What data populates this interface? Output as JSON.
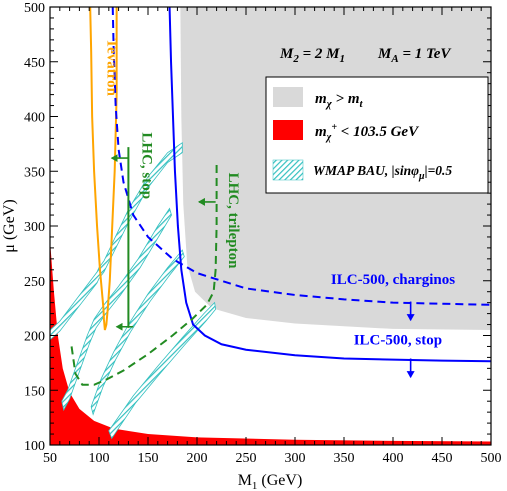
{
  "chart_data": {
    "type": "line",
    "xlabel": "M",
    "xlabel_sub": "1",
    "xlabel_unit": "(GeV)",
    "ylabel": "μ (GeV)",
    "xlim": [
      50,
      500
    ],
    "ylim": [
      100,
      500
    ],
    "x_ticks": [
      "50",
      "100",
      "150",
      "200",
      "250",
      "300",
      "350",
      "400",
      "450",
      "500"
    ],
    "y_ticks": [
      "100",
      "150",
      "200",
      "250",
      "300",
      "350",
      "400",
      "450",
      "500"
    ],
    "grid": false,
    "header": {
      "m2_text": "M",
      "m2_sub": "2",
      "m2_rest": " = 2 M",
      "m2_sub2": "1",
      "ma_text": "M",
      "ma_sub": "A",
      "ma_rest": " = 1 TeV"
    },
    "legend": {
      "position": "top-right",
      "entries": [
        {
          "text": "m",
          "sub": "χ",
          "rest": " > m",
          "sub2": "t",
          "color": "#d9d9d9",
          "style": "fill"
        },
        {
          "text": "m",
          "sub": "χ",
          "sup": "+",
          "rest": " < 103.5 GeV",
          "color": "#ff0000",
          "style": "fill"
        },
        {
          "text": "WMAP BAU, |sinφ",
          "sub": "μ",
          "rest": "|=0.5",
          "color": "#33c0c0",
          "style": "hatch"
        }
      ]
    },
    "regions": [
      {
        "name": "m_chi > m_t",
        "color": "#d9d9d9",
        "points": [
          [
            183,
            500
          ],
          [
            500,
            500
          ],
          [
            500,
            205
          ],
          [
            400,
            206
          ],
          [
            300,
            211
          ],
          [
            250,
            216
          ],
          [
            215,
            225
          ],
          [
            198,
            240
          ],
          [
            190,
            265
          ],
          [
            186,
            320
          ],
          [
            184,
            400
          ],
          [
            183,
            500
          ]
        ]
      },
      {
        "name": "m_chi+ < 103.5 GeV",
        "color": "#ff0000",
        "points": [
          [
            50,
            100
          ],
          [
            50,
            287
          ],
          [
            54,
            240
          ],
          [
            58,
            200
          ],
          [
            63,
            170
          ],
          [
            70,
            148
          ],
          [
            80,
            133
          ],
          [
            95,
            122
          ],
          [
            115,
            115
          ],
          [
            150,
            110
          ],
          [
            200,
            107
          ],
          [
            300,
            104.8
          ],
          [
            400,
            103.8
          ],
          [
            500,
            103.2
          ],
          [
            500,
            100
          ]
        ]
      }
    ],
    "wmap_bands": [
      {
        "points": [
          [
            50,
            205
          ],
          [
            60,
            213
          ],
          [
            98,
            258
          ],
          [
            100,
            262
          ],
          [
            105,
            268
          ],
          [
            130,
            315
          ],
          [
            150,
            345
          ],
          [
            170,
            367
          ],
          [
            185,
            376
          ],
          [
            185,
            367
          ],
          [
            170,
            358
          ],
          [
            150,
            335
          ],
          [
            130,
            303
          ],
          [
            105,
            258
          ],
          [
            100,
            252
          ],
          [
            98,
            248
          ],
          [
            60,
            204
          ],
          [
            50,
            196
          ]
        ]
      },
      {
        "points": [
          [
            62,
            140
          ],
          [
            68,
            150
          ],
          [
            78,
            175
          ],
          [
            88,
            200
          ],
          [
            95,
            215
          ],
          [
            105,
            228
          ],
          [
            120,
            245
          ],
          [
            140,
            270
          ],
          [
            160,
            300
          ],
          [
            172,
            316
          ],
          [
            174,
            310
          ],
          [
            162,
            292
          ],
          [
            142,
            262
          ],
          [
            122,
            237
          ],
          [
            107,
            220
          ],
          [
            97,
            207
          ],
          [
            90,
            192
          ],
          [
            80,
            167
          ],
          [
            70,
            142
          ],
          [
            64,
            132
          ]
        ]
      },
      {
        "points": [
          [
            92,
            135
          ],
          [
            102,
            160
          ],
          [
            115,
            185
          ],
          [
            130,
            210
          ],
          [
            150,
            238
          ],
          [
            170,
            262
          ],
          [
            185,
            278
          ],
          [
            187,
            272
          ],
          [
            172,
            255
          ],
          [
            152,
            231
          ],
          [
            132,
            203
          ],
          [
            117,
            178
          ],
          [
            104,
            153
          ],
          [
            94,
            128
          ]
        ]
      },
      {
        "points": [
          [
            110,
            113
          ],
          [
            135,
            145
          ],
          [
            160,
            172
          ],
          [
            185,
            198
          ],
          [
            207,
            220
          ],
          [
            218,
            230
          ],
          [
            219,
            224
          ],
          [
            209,
            213
          ],
          [
            187,
            191
          ],
          [
            162,
            165
          ],
          [
            137,
            138
          ],
          [
            113,
            106
          ]
        ]
      }
    ],
    "series": [
      {
        "color": "#ffa500",
        "style": "solid",
        "x": [
          91,
          92,
          93,
          95,
          98,
          101,
          103.5,
          104.5,
          105,
          106,
          107.5,
          109,
          111,
          113.5,
          116,
          118,
          118
        ],
        "y": [
          500,
          460,
          400,
          350,
          300,
          260,
          235,
          225,
          215,
          205,
          210,
          225,
          250,
          300,
          350,
          420,
          500
        ]
      },
      {
        "color": "#0000ff",
        "style": "dashed",
        "x": [
          114,
          115,
          117,
          120,
          125,
          135,
          150,
          175,
          200,
          250,
          300,
          350,
          400,
          450,
          500
        ],
        "y": [
          500,
          460,
          410,
          370,
          340,
          310,
          290,
          270,
          257,
          243,
          237,
          233,
          230,
          229,
          228
        ]
      },
      {
        "color": "#0000ff",
        "style": "solid",
        "x": [
          172,
          173.5,
          175.5,
          177.5,
          180.5,
          184,
          189,
          196,
          208,
          225,
          250,
          300,
          350,
          400,
          450,
          500
        ],
        "y": [
          500,
          450,
          400,
          350,
          300,
          260,
          230,
          210,
          200,
          192,
          187,
          182,
          179,
          178,
          177,
          176.5
        ]
      },
      {
        "color": "#228b22",
        "style": "dashed",
        "x": [
          72,
          76,
          83,
          95,
          108,
          125,
          150,
          175,
          195,
          210,
          217,
          219,
          220,
          220
        ],
        "y": [
          190,
          165,
          155,
          155,
          160,
          168,
          183,
          200,
          215,
          228,
          240,
          260,
          300,
          360
        ]
      },
      {
        "color": "#228b22",
        "style": "solid",
        "x": [
          130,
          130
        ],
        "y": [
          207,
          372
        ]
      }
    ],
    "annotations": [
      {
        "text": "Tevatron",
        "x": 112,
        "y": 445,
        "color": "#ffa500",
        "rotate": 90
      },
      {
        "text": "LHC, stop",
        "x": 148,
        "y": 355,
        "color": "#228b22",
        "rotate": 90
      },
      {
        "text": "LHC, trilepton",
        "x": 236,
        "y": 305,
        "color": "#228b22",
        "rotate": 90
      },
      {
        "text": "ILC-500, charginos",
        "x": 400,
        "y": 250,
        "color": "#0000ff",
        "rotate": 0
      },
      {
        "text": "ILC-500, stop",
        "x": 405,
        "y": 195,
        "color": "#0000ff",
        "rotate": 0
      }
    ],
    "arrows": [
      {
        "color": "#228b22",
        "from": [
          130,
          362
        ],
        "to": [
          113,
          362
        ]
      },
      {
        "color": "#228b22",
        "from": [
          219,
          322
        ],
        "to": [
          202,
          322
        ]
      },
      {
        "color": "#228b22",
        "from": [
          135,
          208
        ],
        "to": [
          118,
          208
        ]
      },
      {
        "color": "#0000ff",
        "from": [
          418,
          231
        ],
        "to": [
          418,
          214
        ]
      },
      {
        "color": "#0000ff",
        "from": [
          418,
          179
        ],
        "to": [
          418,
          162
        ]
      }
    ]
  }
}
